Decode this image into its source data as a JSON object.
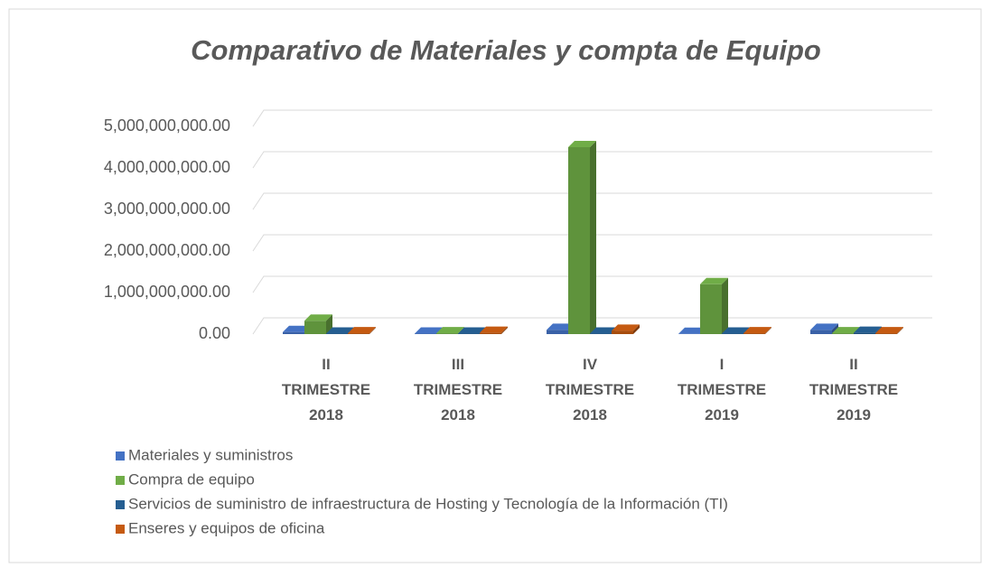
{
  "chart_data": {
    "type": "bar3d",
    "title": "Comparativo de Materiales y compta de Equipo",
    "categories": [
      "II TRIMESTRE 2018",
      "III TRIMESTRE 2018",
      "IV TRIMESTRE 2018",
      "I TRIMESTRE 2019",
      "II TRIMESTRE 2019"
    ],
    "series": [
      {
        "name": "Materiales y suministros",
        "color": "#4472c4",
        "values": [
          50000000,
          10000000,
          100000000,
          5000000,
          100000000
        ]
      },
      {
        "name": "Compra de equipo",
        "color": "#70ad47",
        "values": [
          320000000,
          20000000,
          4500000000,
          1200000000,
          20000000
        ]
      },
      {
        "name": "Servicios de suministro de infraestructura de Hosting y Tecnología de la Información (TI)",
        "color": "#255e91",
        "values": [
          10000000,
          10000000,
          10000000,
          10000000,
          30000000
        ]
      },
      {
        "name": "Enseres y equipos de oficina",
        "color": "#c55a11",
        "values": [
          20000000,
          30000000,
          80000000,
          20000000,
          20000000
        ]
      }
    ],
    "ylim": [
      0,
      5000000000
    ],
    "yticks": [
      {
        "value": 0,
        "label": "0.00"
      },
      {
        "value": 1000000000,
        "label": "1,000,000,000.00"
      },
      {
        "value": 2000000000,
        "label": "2,000,000,000.00"
      },
      {
        "value": 3000000000,
        "label": "3,000,000,000.00"
      },
      {
        "value": 4000000000,
        "label": "4,000,000,000.00"
      },
      {
        "value": 5000000000,
        "label": "5,000,000,000.00"
      }
    ],
    "grid": true,
    "legend": "bottom"
  }
}
